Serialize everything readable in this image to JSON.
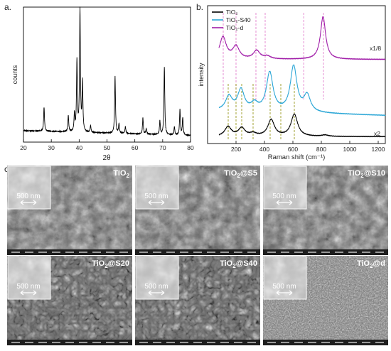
{
  "figure": {
    "panel_a": {
      "label": "a.",
      "chart_data": {
        "type": "line",
        "title": "",
        "xlabel": "2θ",
        "ylabel": "counts",
        "xlim": [
          20,
          80
        ],
        "x_ticks": [
          "20",
          "30",
          "40",
          "50",
          "60",
          "70",
          "80"
        ],
        "y_ticks_shown": false,
        "grid": false,
        "series": [
          {
            "color": "#000000",
            "peaks": [
              {
                "x": 27.4,
                "y": 0.18
              },
              {
                "x": 36.1,
                "y": 0.12
              },
              {
                "x": 38.3,
                "y": 0.13
              },
              {
                "x": 39.2,
                "y": 0.52
              },
              {
                "x": 40.3,
                "y": 0.9
              },
              {
                "x": 41.2,
                "y": 0.36
              },
              {
                "x": 44.1,
                "y": 0.05
              },
              {
                "x": 52.9,
                "y": 0.42
              },
              {
                "x": 54.3,
                "y": 0.07
              },
              {
                "x": 56.6,
                "y": 0.05
              },
              {
                "x": 62.9,
                "y": 0.12
              },
              {
                "x": 64.1,
                "y": 0.04
              },
              {
                "x": 69.0,
                "y": 0.1
              },
              {
                "x": 70.6,
                "y": 0.5
              },
              {
                "x": 74.2,
                "y": 0.06
              },
              {
                "x": 76.2,
                "y": 0.19
              },
              {
                "x": 77.2,
                "y": 0.13
              }
            ]
          }
        ]
      }
    },
    "panel_b": {
      "label": "b.",
      "chart_data": {
        "type": "line",
        "title": "",
        "xlabel": "Raman shift (cm⁻¹)",
        "ylabel": "intensity",
        "xlim": [
          0,
          1250
        ],
        "x_ticks": [
          "200",
          "400",
          "600",
          "800",
          "1000",
          "1200"
        ],
        "y_ticks_shown": false,
        "grid": false,
        "legend": {
          "placement": "top-left",
          "entries": [
            {
              "name": "TiO₂",
              "color": "#000000"
            },
            {
              "name": "TiO₂-S40",
              "color": "#2aa6d6"
            },
            {
              "name": "TiO₂-d",
              "color": "#a01ca8"
            }
          ]
        },
        "annotations": [
          {
            "text": "x1/8",
            "series": "TiO₂-d"
          },
          {
            "text": "x2",
            "series": "TiO₂"
          }
        ],
        "series": [
          {
            "name": "TiO₂",
            "color": "#000000",
            "baseline": 0.05,
            "peaks": [
              {
                "x": 144,
                "y": 0.07
              },
              {
                "x": 240,
                "y": 0.06
              },
              {
                "x": 320,
                "y": 0.02
              },
              {
                "x": 447,
                "y": 0.12
              },
              {
                "x": 610,
                "y": 0.16
              },
              {
                "x": 826,
                "y": 0.01
              }
            ]
          },
          {
            "name": "TiO₂-S40",
            "color": "#2aa6d6",
            "baseline": 0.22,
            "peaks": [
              {
                "x": 150,
                "y": 0.1
              },
              {
                "x": 235,
                "y": 0.15
              },
              {
                "x": 330,
                "y": 0.05
              },
              {
                "x": 437,
                "y": 0.28
              },
              {
                "x": 605,
                "y": 0.33
              },
              {
                "x": 700,
                "y": 0.12
              }
            ]
          },
          {
            "name": "TiO₂-d",
            "color": "#a01ca8",
            "baseline": 0.61,
            "peaks": [
              {
                "x": 108,
                "y": 0.16
              },
              {
                "x": 200,
                "y": 0.09
              },
              {
                "x": 345,
                "y": 0.06
              },
              {
                "x": 420,
                "y": 0.02
              },
              {
                "x": 812,
                "y": 0.31
              }
            ]
          }
        ],
        "reference_lines": {
          "dashed_magenta_x": [
            110,
            200,
            340,
            405,
            676,
            815
          ],
          "dashed_olive_x": [
            145,
            200,
            240,
            320,
            440,
            515,
            610
          ]
        }
      }
    },
    "panel_c": {
      "label": "c.",
      "images": [
        {
          "label": "TiO₂",
          "label_main": "TiO",
          "label_sub": "2",
          "label_rest": "",
          "scale": "500 nm",
          "texture": "rough-ridged"
        },
        {
          "label": "TiO₂@S5",
          "label_main": "TiO",
          "label_sub": "2",
          "label_rest": "@S5",
          "scale": "500 nm",
          "texture": "rough-ridged"
        },
        {
          "label": "TiO₂@S10",
          "label_main": "TiO",
          "label_sub": "2",
          "label_rest": "@S10",
          "scale": "500 nm",
          "texture": "rough-ridged"
        },
        {
          "label": "TiO₂@S20",
          "label_main": "TiO",
          "label_sub": "2",
          "label_rest": "@S20",
          "scale": "500 nm",
          "texture": "porous"
        },
        {
          "label": "TiO₂@S40",
          "label_main": "TiO",
          "label_sub": "2",
          "label_rest": "@S40",
          "scale": "500 nm",
          "texture": "porous"
        },
        {
          "label": "TiO₂@d",
          "label_main": "TiO",
          "label_sub": "2",
          "label_rest": "@d",
          "scale": "500 nm",
          "texture": "fine-granular"
        }
      ]
    }
  }
}
